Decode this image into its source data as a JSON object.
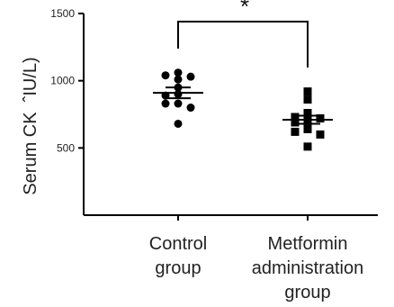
{
  "chart_data": {
    "type": "scatter",
    "ylabel": "Serum CK  ˆIU/L)",
    "ylim": [
      0,
      1500
    ],
    "yticks": [
      500,
      1000,
      1500
    ],
    "yticks_labels": [
      "500",
      "1000",
      "1500"
    ],
    "categories": [
      [
        "Control",
        "group"
      ],
      [
        "Metformin",
        "administration",
        "group"
      ]
    ],
    "series": [
      {
        "marker": "circle",
        "values": [
          1060,
          1040,
          1030,
          1010,
          950,
          900,
          890,
          830,
          830,
          800,
          680
        ],
        "mean": 910,
        "sem": 40
      },
      {
        "marker": "square",
        "values": [
          920,
          860,
          760,
          730,
          720,
          700,
          690,
          640,
          620,
          600,
          510
        ],
        "mean": 710,
        "sem": 30
      }
    ],
    "significance": {
      "label": "*",
      "between": [
        0,
        1
      ]
    },
    "marker_color": "#000000",
    "grid": false,
    "legend": "none"
  }
}
